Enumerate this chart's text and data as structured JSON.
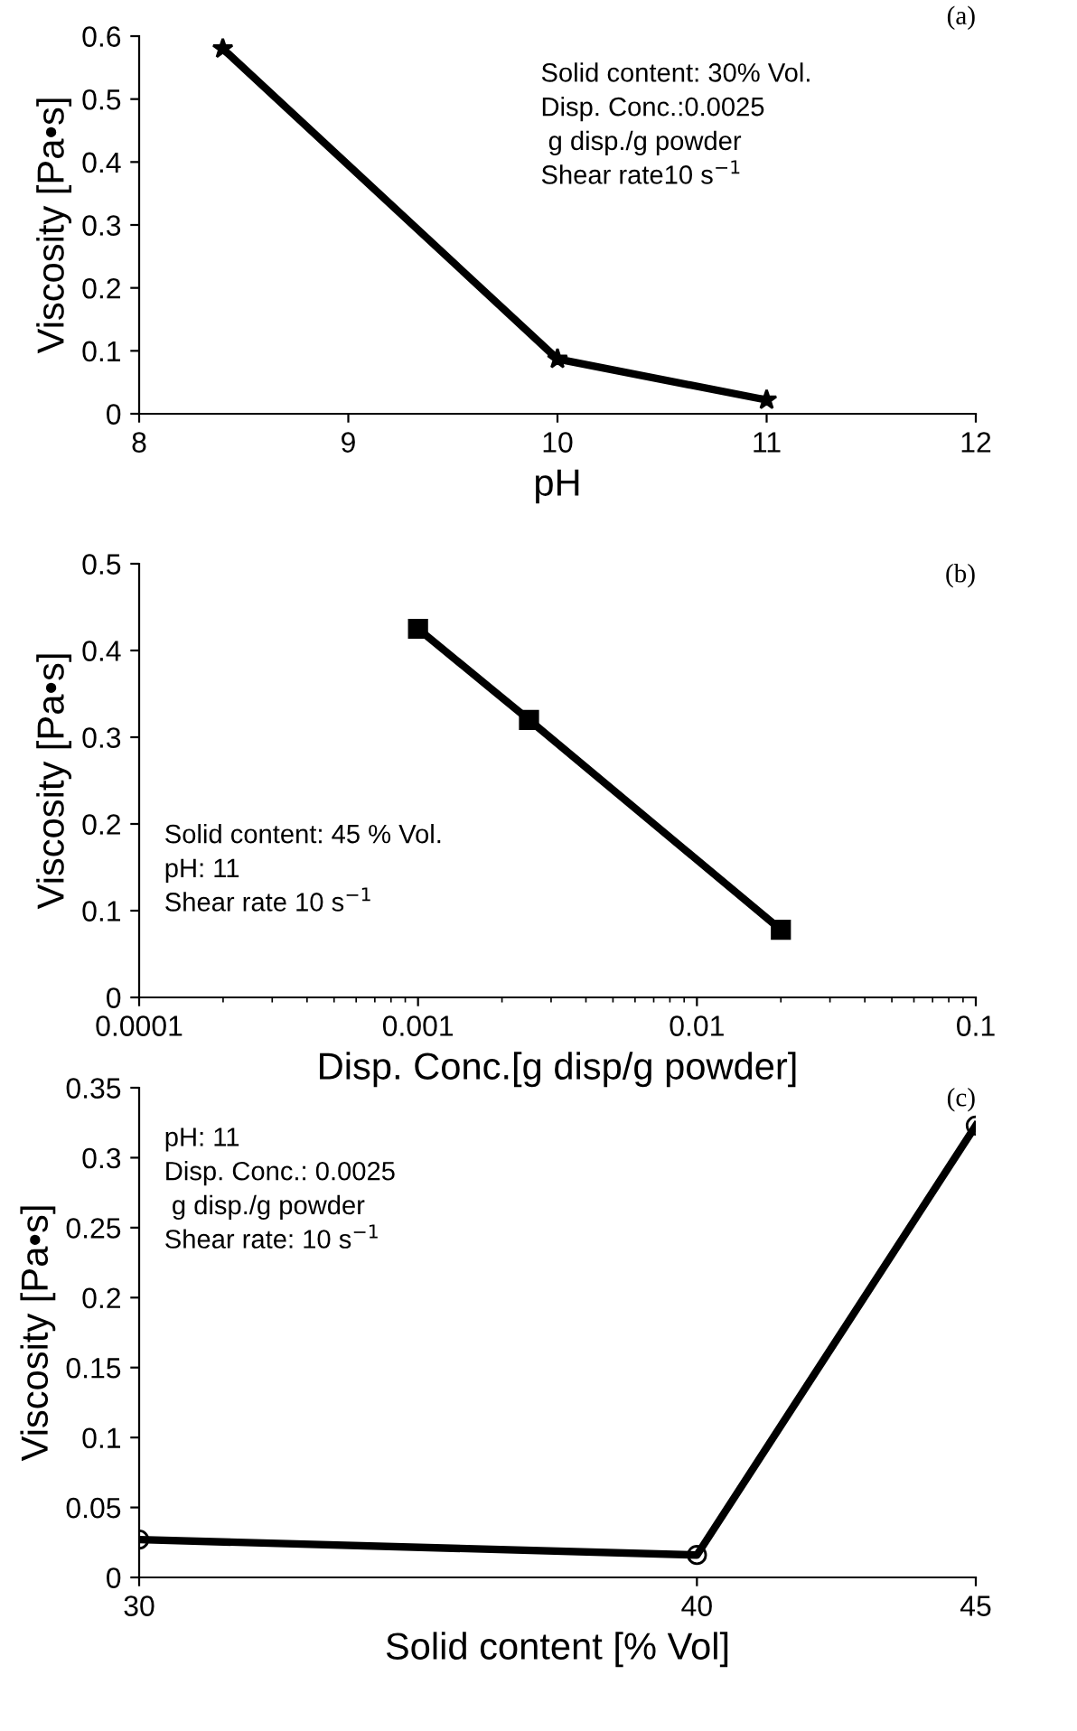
{
  "chart_data": [
    {
      "type": "line",
      "xlabel": "pH",
      "ylabel": "Viscosity [Pa•s]",
      "x": [
        8.4,
        10,
        11
      ],
      "values": [
        0.58,
        0.087,
        0.022
      ],
      "color": "#000000",
      "marker": "star",
      "line_style": "solid",
      "xlim": [
        8,
        12
      ],
      "ylim": [
        0,
        0.6
      ],
      "xticks": [
        8,
        9,
        10,
        11,
        12
      ],
      "yticks": [
        0,
        0.1,
        0.2,
        0.3,
        0.4,
        0.5,
        0.6
      ],
      "grid": false,
      "legend": false,
      "annotations": [
        "(a)",
        "Solid content: 30% Vol.\nDisp. Conc.:0.0025\n g disp./g powder\nShear rate10 s$^{−1}$"
      ]
    },
    {
      "type": "line",
      "xlabel": "Disp. Conc.[g disp/g powder]",
      "ylabel": "Viscosity [Pa•s]",
      "x": [
        0.001,
        0.0025,
        0.02
      ],
      "values": [
        0.425,
        0.32,
        0.078
      ],
      "color": "#000000",
      "marker": "square",
      "line_style": "solid",
      "log": "x",
      "xlim": [
        0.0001,
        0.1
      ],
      "ylim": [
        0,
        0.5
      ],
      "xticks": [
        0.0001,
        0.001,
        0.01,
        0.1
      ],
      "yticks": [
        0,
        0.1,
        0.2,
        0.3,
        0.4,
        0.5
      ],
      "grid": false,
      "legend": false,
      "annotations": [
        "(b)",
        "Solid content: 45 % Vol.\npH: 11\nShear rate 10 s$^{−1}$"
      ]
    },
    {
      "type": "line",
      "xlabel": "Solid content [% Vol]",
      "ylabel": "Viscosity [Pa•s]",
      "x": [
        30,
        40,
        45
      ],
      "values": [
        0.027,
        0.016,
        0.323
      ],
      "color": "#000000",
      "marker": "circle",
      "line_style": "solid",
      "xlim": [
        30,
        45
      ],
      "ylim": [
        0,
        0.35
      ],
      "xticks": [
        30,
        40,
        45
      ],
      "yticks": [
        0,
        0.05,
        0.1,
        0.15,
        0.2,
        0.25,
        0.3,
        0.35
      ],
      "grid": false,
      "legend": false,
      "annotations": [
        "(c)",
        "pH: 11\nDisp. Conc.: 0.0025\n g disp./g powder\nShear rate: 10 s$^{−1}$"
      ]
    }
  ]
}
